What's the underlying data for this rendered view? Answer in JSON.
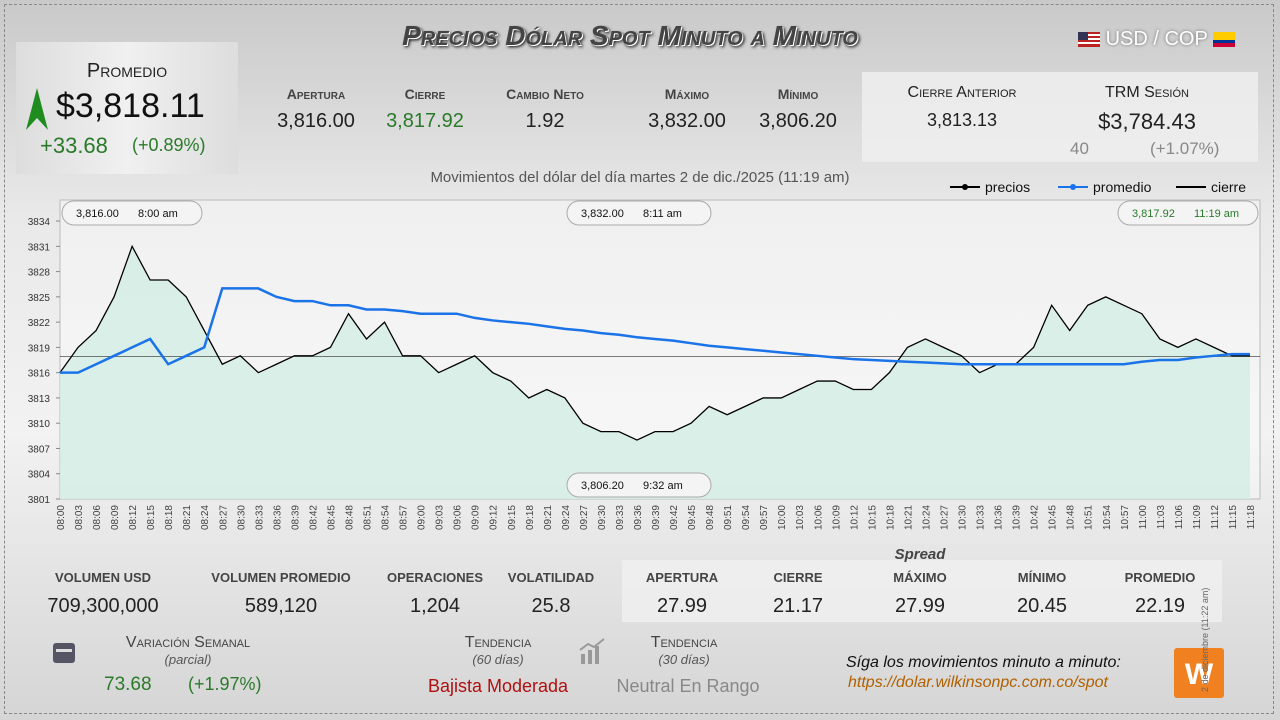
{
  "header": {
    "title": "Precios Dólar Spot Minuto a Minuto",
    "pair": "USD / COP",
    "promedio": {
      "label": "Promedio",
      "value": "$3,818.11",
      "change": "+33.68",
      "change_pct": "(+0.89%)"
    },
    "stats": [
      {
        "label": "Apertura",
        "value": "3,816.00"
      },
      {
        "label": "Cierre",
        "value": "3,817.92"
      },
      {
        "label": "Cambio Neto",
        "value": "1.92"
      },
      {
        "label": "Máximo",
        "value": "3,832.00"
      },
      {
        "label": "Mínimo",
        "value": "3,806.20"
      }
    ],
    "cierre_anterior": {
      "label": "Cierre Anterior",
      "value": "3,813.13"
    },
    "trm": {
      "label": "TRM Sesión",
      "value": "$3,784.43",
      "change": "40",
      "change_pct": "(+1.07%)"
    }
  },
  "chart_data": {
    "type": "line",
    "subtitle": "Movimientos del dólar del día martes 2 de dic./2025 (11:19 am)",
    "categories": [
      "08:00",
      "08:03",
      "08:06",
      "08:09",
      "08:12",
      "08:15",
      "08:18",
      "08:21",
      "08:24",
      "08:27",
      "08:30",
      "08:33",
      "08:36",
      "08:39",
      "08:42",
      "08:45",
      "08:48",
      "08:51",
      "08:54",
      "08:57",
      "09:00",
      "09:03",
      "09:06",
      "09:09",
      "09:12",
      "09:15",
      "09:18",
      "09:21",
      "09:24",
      "09:27",
      "09:30",
      "09:33",
      "09:36",
      "09:39",
      "09:42",
      "09:45",
      "09:48",
      "09:51",
      "09:54",
      "09:57",
      "10:00",
      "10:03",
      "10:06",
      "10:09",
      "10:12",
      "10:15",
      "10:18",
      "10:21",
      "10:24",
      "10:27",
      "10:30",
      "10:33",
      "10:36",
      "10:39",
      "10:42",
      "10:45",
      "10:48",
      "10:51",
      "10:54",
      "10:57",
      "11:00",
      "11:03",
      "11:06",
      "11:09",
      "11:12",
      "11:15",
      "11:18"
    ],
    "series": [
      {
        "name": "precios",
        "color": "#000000",
        "values": [
          3816,
          3819,
          3821,
          3825,
          3831,
          3827,
          3827,
          3825,
          3821,
          3817,
          3818,
          3816,
          3817,
          3818,
          3818,
          3819,
          3823,
          3820,
          3822,
          3818,
          3818,
          3816,
          3817,
          3818,
          3816,
          3815,
          3813,
          3814,
          3813,
          3810,
          3809,
          3809,
          3808,
          3809,
          3809,
          3810,
          3812,
          3811,
          3812,
          3813,
          3813,
          3814,
          3815,
          3815,
          3814,
          3814,
          3816,
          3819,
          3820,
          3819,
          3818,
          3816,
          3817,
          3817,
          3819,
          3824,
          3821,
          3824,
          3825,
          3824,
          3823,
          3820,
          3819,
          3820,
          3819,
          3818,
          3818
        ]
      },
      {
        "name": "promedio",
        "color": "#1a73e8",
        "values": [
          3816,
          3816,
          3817,
          3818,
          3819,
          3820,
          3817,
          3818,
          3819,
          3826,
          3826,
          3826,
          3825,
          3824.5,
          3824.5,
          3824,
          3824,
          3823.5,
          3823.5,
          3823.3,
          3823,
          3823,
          3823,
          3822.5,
          3822.2,
          3822,
          3821.8,
          3821.5,
          3821.2,
          3821,
          3820.7,
          3820.5,
          3820.2,
          3820,
          3819.8,
          3819.5,
          3819.2,
          3819,
          3818.8,
          3818.6,
          3818.4,
          3818.2,
          3818,
          3817.8,
          3817.6,
          3817.5,
          3817.4,
          3817.3,
          3817.2,
          3817.1,
          3817,
          3817,
          3817,
          3817,
          3817,
          3817,
          3817,
          3817,
          3817,
          3817,
          3817.3,
          3817.5,
          3817.5,
          3817.8,
          3818,
          3818.2,
          3818.2
        ]
      }
    ],
    "cierre_line": {
      "name": "cierre",
      "value": 3817.92,
      "color": "#000000"
    },
    "area_color": "#d6ede6",
    "ylim": [
      3801,
      3836.5
    ],
    "yticks": [
      3801,
      3804,
      3807,
      3810,
      3813,
      3816,
      3819,
      3822,
      3825,
      3828,
      3831,
      3834
    ],
    "annotations": [
      {
        "label": "3,816.00",
        "time": "8:00 am"
      },
      {
        "label": "3,832.00",
        "time": "8:11 am"
      },
      {
        "label": "3,806.20",
        "time": "9:32 am"
      },
      {
        "label": "3,817.92",
        "time": "11:19 am"
      }
    ]
  },
  "volume": [
    {
      "label": "Volumen USD",
      "value": "709,300,000"
    },
    {
      "label": "Volumen Promedio",
      "value": "589,120"
    },
    {
      "label": "Operaciones",
      "value": "1,204"
    },
    {
      "label": "Volatilidad",
      "value": "25.8"
    }
  ],
  "spread": {
    "title": "Spread",
    "items": [
      {
        "label": "Apertura",
        "value": "27.99"
      },
      {
        "label": "Cierre",
        "value": "21.17"
      },
      {
        "label": "Máximo",
        "value": "27.99"
      },
      {
        "label": "Mínimo",
        "value": "20.45"
      },
      {
        "label": "Promedio",
        "value": "22.19"
      }
    ]
  },
  "semanal": {
    "label": "Variación Semanal",
    "note": "(parcial)",
    "value": "73.68",
    "pct": "(+1.97%)"
  },
  "tendencia60": {
    "label": "Tendencia",
    "note": "(60 días)",
    "value": "Bajista Moderada"
  },
  "tendencia30": {
    "label": "Tendencia",
    "note": "(30 días)",
    "value": "Neutral En Rango"
  },
  "footer": {
    "text": "Síga los movimientos minuto a minuto:",
    "url": "https://dolar.wilkinsonpc.com.co/spot",
    "date": "2 de diciembre (11:22 am)"
  }
}
